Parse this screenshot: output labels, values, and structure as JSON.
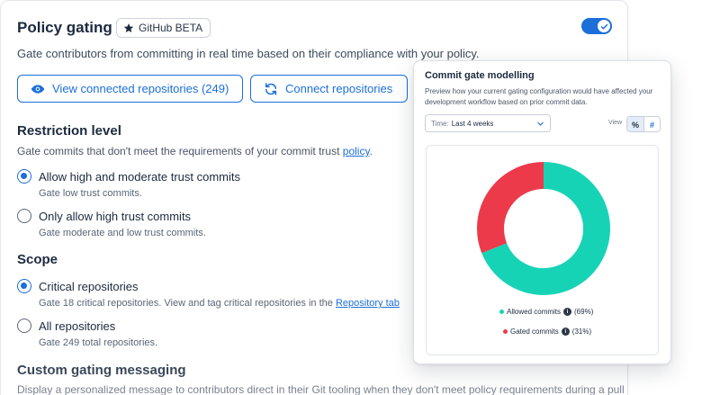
{
  "policy": {
    "title": "Policy gating",
    "badge_label": "GitHub BETA",
    "badge_icon": "star-icon",
    "enabled": true,
    "description": "Gate contributors from committing in real time based on their compliance with your policy.",
    "buttons": {
      "view_repos": "View connected repositories (249)",
      "connect_repos": "Connect repositories"
    }
  },
  "restriction": {
    "heading": "Restriction level",
    "text_prefix": "Gate commits that don't meet the requirements of your commit trust ",
    "text_link": "policy",
    "text_suffix": ".",
    "options": [
      {
        "label": "Allow high and moderate trust commits",
        "sub": "Gate low trust commits.",
        "checked": true
      },
      {
        "label": "Only allow high trust commits",
        "sub": "Gate moderate and low trust commits.",
        "checked": false
      }
    ]
  },
  "scope": {
    "heading": "Scope",
    "options": [
      {
        "label": "Critical repositories",
        "sub_prefix": "Gate 18 critical repositories. View and tag critical repositories in the ",
        "sub_link": "Repository tab",
        "checked": true
      },
      {
        "label": "All repositories",
        "sub": "Gate 249 total repositories.",
        "checked": false
      }
    ]
  },
  "custom": {
    "heading": "Custom gating messaging",
    "text": "Display a personalized message to contributors direct in their Git tooling when they don't meet policy requirements during a pull"
  },
  "panel": {
    "title": "Commit gate modelling",
    "description": "Preview how your current gating configuration would have affected your development workflow based on prior commit data.",
    "time_label": "Time:",
    "time_value": "Last 4 weeks",
    "view_label": "View",
    "view_percent": "%",
    "view_count": "#"
  },
  "chart_data": {
    "type": "pie",
    "title": "",
    "categories": [
      "Allowed commits",
      "Gated commits"
    ],
    "values": [
      69,
      31
    ],
    "value_labels": [
      "(69%)",
      "(31%)"
    ],
    "colors": [
      "#17d3b6",
      "#ec3a4b"
    ]
  },
  "colors": {
    "accent": "#1b6fd8",
    "allowed": "#17d3b6",
    "gated": "#ec3a4b"
  }
}
